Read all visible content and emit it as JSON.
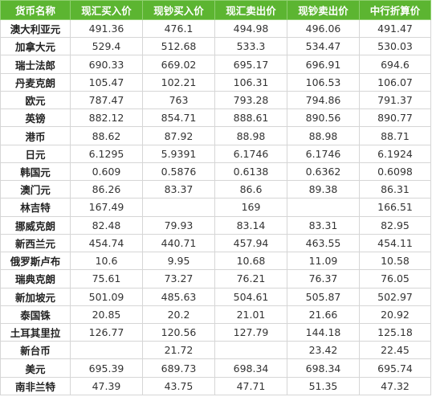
{
  "table": {
    "headers": [
      "货币名称",
      "现汇买入价",
      "现钞买入价",
      "现汇卖出价",
      "现钞卖出价",
      "中行折算价"
    ],
    "rows": [
      [
        "澳大利亚元",
        "491.36",
        "476.1",
        "494.98",
        "496.06",
        "491.47"
      ],
      [
        "加拿大元",
        "529.4",
        "512.68",
        "533.3",
        "534.47",
        "530.03"
      ],
      [
        "瑞士法郎",
        "690.33",
        "669.02",
        "695.17",
        "696.91",
        "694.6"
      ],
      [
        "丹麦克朗",
        "105.47",
        "102.21",
        "106.31",
        "106.53",
        "106.07"
      ],
      [
        "欧元",
        "787.47",
        "763",
        "793.28",
        "794.86",
        "791.37"
      ],
      [
        "英镑",
        "882.12",
        "854.71",
        "888.61",
        "890.56",
        "890.77"
      ],
      [
        "港币",
        "88.62",
        "87.92",
        "88.98",
        "88.98",
        "88.71"
      ],
      [
        "日元",
        "6.1295",
        "5.9391",
        "6.1746",
        "6.1746",
        "6.1924"
      ],
      [
        "韩国元",
        "0.609",
        "0.5876",
        "0.6138",
        "0.6362",
        "0.6098"
      ],
      [
        "澳门元",
        "86.26",
        "83.37",
        "86.6",
        "89.38",
        "86.31"
      ],
      [
        "林吉特",
        "167.49",
        "",
        "169",
        "",
        "166.51"
      ],
      [
        "挪威克朗",
        "82.48",
        "79.93",
        "83.14",
        "83.31",
        "82.95"
      ],
      [
        "新西兰元",
        "454.74",
        "440.71",
        "457.94",
        "463.55",
        "454.11"
      ],
      [
        "俄罗斯卢布",
        "10.6",
        "9.95",
        "10.68",
        "11.09",
        "10.58"
      ],
      [
        "瑞典克朗",
        "75.61",
        "73.27",
        "76.21",
        "76.37",
        "76.05"
      ],
      [
        "新加坡元",
        "501.09",
        "485.63",
        "504.61",
        "505.87",
        "502.97"
      ],
      [
        "泰国铢",
        "20.85",
        "20.2",
        "21.01",
        "21.66",
        "20.92"
      ],
      [
        "土耳其里拉",
        "126.77",
        "120.56",
        "127.79",
        "144.18",
        "125.18"
      ],
      [
        "新台币",
        "",
        "21.72",
        "",
        "23.42",
        "22.45"
      ],
      [
        "美元",
        "695.39",
        "689.73",
        "698.34",
        "698.34",
        "695.74"
      ],
      [
        "南非兰特",
        "47.39",
        "43.75",
        "47.71",
        "51.35",
        "47.32"
      ]
    ]
  },
  "colors": {
    "header_bg": "#5cb531",
    "header_text": "#ffffff",
    "cell_border": "#d6d6d6",
    "cell_text": "#333333"
  }
}
